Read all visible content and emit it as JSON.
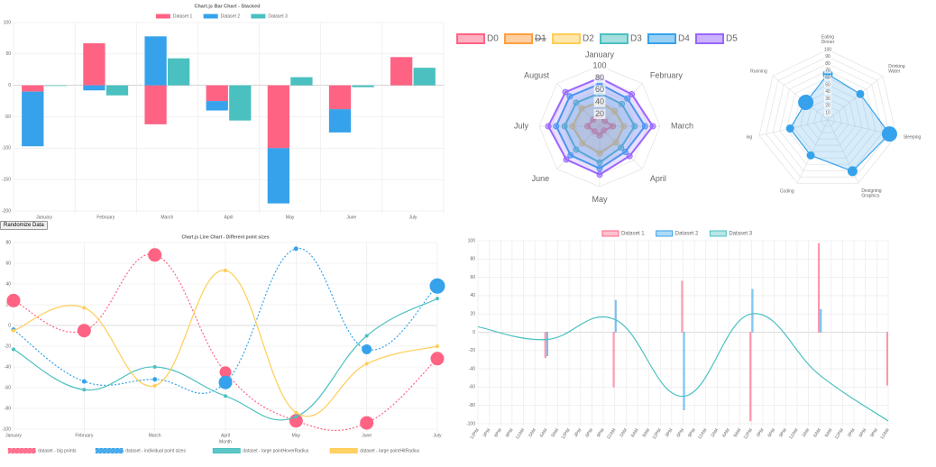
{
  "controls": {
    "button": "Randomize Data"
  },
  "chart_data": [
    {
      "type": "bar",
      "stacked": true,
      "title": "Chart.js Bar Chart - Stacked",
      "categories": [
        "January",
        "February",
        "March",
        "April",
        "May",
        "June",
        "July"
      ],
      "series": [
        {
          "name": "Dataset 1",
          "color": "#ff6384",
          "stack": 0,
          "values": [
            -10,
            67,
            -62,
            -25,
            -100,
            -38,
            45
          ]
        },
        {
          "name": "Dataset 2",
          "color": "#36a2eb",
          "stack": 0,
          "values": [
            -87,
            -8,
            78,
            -15,
            -88,
            -37,
            0
          ]
        },
        {
          "name": "Dataset 3",
          "color": "#4bc0c0",
          "stack": 1,
          "values": [
            -1,
            -16,
            43,
            -56,
            13,
            -3,
            28
          ]
        }
      ],
      "ylim": [
        -200,
        100
      ],
      "yticks": [
        -200,
        -150,
        -100,
        -50,
        0,
        50,
        100
      ],
      "grid": true,
      "legend": "top"
    },
    {
      "type": "radar",
      "categories": [
        "January",
        "February",
        "March",
        "April",
        "May",
        "June",
        "July",
        "August"
      ],
      "series": [
        {
          "name": "D0",
          "color": "#ff6384",
          "values": [
            18,
            12,
            22,
            10,
            15,
            12,
            20,
            15
          ]
        },
        {
          "name": "D1",
          "color": "#ff9f40",
          "hidden": true
        },
        {
          "name": "D2",
          "color": "#ffcd56",
          "values": [
            40,
            35,
            40,
            38,
            45,
            40,
            45,
            42
          ]
        },
        {
          "name": "D3",
          "color": "#4bc0c0",
          "values": [
            55,
            52,
            58,
            50,
            60,
            55,
            58,
            55
          ]
        },
        {
          "name": "D4",
          "color": "#36a2eb",
          "values": [
            70,
            65,
            75,
            60,
            70,
            68,
            72,
            70
          ]
        },
        {
          "name": "D5",
          "color": "#9966ff",
          "values": [
            80,
            75,
            88,
            70,
            80,
            78,
            85,
            80
          ]
        }
      ],
      "ylim": [
        0,
        100
      ],
      "yticks": [
        20,
        40,
        60,
        80,
        100
      ],
      "legend": "top"
    },
    {
      "type": "radar",
      "categories": [
        [
          "Eating",
          "Dinner"
        ],
        [
          "Drinking",
          "Water"
        ],
        "Sleeping",
        [
          "Designing",
          "Graphics"
        ],
        "Coding",
        "ing",
        "Running"
      ],
      "series": [
        {
          "color": "#36a2eb",
          "values": [
            65,
            59,
            90,
            81,
            56,
            55,
            40
          ],
          "point_sizes": [
            5,
            4,
            8,
            5,
            4,
            4,
            8
          ]
        }
      ],
      "ylim": [
        0,
        100
      ],
      "yticks": [
        10,
        20,
        30,
        40,
        50,
        60,
        70,
        80,
        90,
        100
      ]
    },
    {
      "type": "line",
      "title": "Chart.js Line Chart - Different point sizes",
      "xlabel": "Month",
      "categories": [
        "January",
        "February",
        "March",
        "April",
        "May",
        "June",
        "July"
      ],
      "series": [
        {
          "name": "dataset - big points",
          "color": "#ff6384",
          "dashed": true,
          "values": [
            24,
            -5,
            68,
            -45,
            -92,
            -94,
            -32
          ],
          "point_sizes": [
            7,
            7,
            7,
            6,
            7,
            7,
            7
          ]
        },
        {
          "name": "dataset - individual point sizes",
          "color": "#36a2eb",
          "dashed": true,
          "values": [
            -4,
            -54,
            -52,
            -55,
            74,
            -23,
            38
          ],
          "point_sizes": [
            2,
            2,
            2,
            7,
            2,
            5,
            8
          ]
        },
        {
          "name": "dataset - large pointHoverRadius",
          "color": "#4bc0c0",
          "dashed": false,
          "values": [
            -23,
            -62,
            -40,
            -68,
            -88,
            -10,
            26
          ],
          "point_sizes": [
            1.5,
            1.5,
            1.5,
            1.5,
            1.5,
            1.5,
            1.5
          ]
        },
        {
          "name": "dataset - large pointHitRadius",
          "color": "#ffcd56",
          "dashed": false,
          "values": [
            -5,
            17,
            -58,
            53,
            -84,
            -37,
            -20
          ],
          "point_sizes": [
            1.5,
            1.5,
            1.5,
            1.5,
            1.5,
            1.5,
            1.5
          ]
        }
      ],
      "ylim": [
        -100,
        80
      ],
      "yticks": [
        -100,
        -80,
        -60,
        -40,
        -20,
        0,
        20,
        40,
        60,
        80
      ],
      "grid": true,
      "legend": "bottom"
    },
    {
      "type": "line",
      "x": [
        0,
        18,
        36,
        54,
        72,
        90,
        108
      ],
      "series": [
        {
          "name": "Dataset 1",
          "type": "bar",
          "color": "#ff6384",
          "values": [
            null,
            -28,
            -60,
            56,
            -97,
            97,
            -58
          ]
        },
        {
          "name": "Dataset 2",
          "type": "bar",
          "color": "#36a2eb",
          "values": [
            null,
            -26,
            35,
            -85,
            47,
            25,
            null
          ]
        },
        {
          "name": "Dataset 3",
          "type": "line",
          "color": "#4bc0c0",
          "values": [
            6,
            -8,
            14,
            -70,
            20,
            -47,
            -97
          ]
        }
      ],
      "xlim": [
        0,
        108
      ],
      "xticks": [
        {
          "value": 0,
          "label": "12PM"
        },
        {
          "value": 3,
          "label": "3PM"
        },
        {
          "value": 6,
          "label": "6PM"
        },
        {
          "value": 9,
          "label": "9PM"
        },
        {
          "value": 12,
          "label": "12AM"
        },
        {
          "value": 15,
          "label": "3AM"
        },
        {
          "value": 18,
          "label": "6AM"
        },
        {
          "value": 21,
          "label": "9AM"
        },
        {
          "value": 24,
          "label": "12PM"
        },
        {
          "value": 27,
          "label": "3PM"
        },
        {
          "value": 30,
          "label": "6PM"
        },
        {
          "value": 33,
          "label": "9PM"
        },
        {
          "value": 36,
          "label": "12AM"
        },
        {
          "value": 39,
          "label": "3AM"
        },
        {
          "value": 42,
          "label": "6AM"
        },
        {
          "value": 45,
          "label": "9AM"
        },
        {
          "value": 48,
          "label": "12PM"
        },
        {
          "value": 51,
          "label": "3PM"
        },
        {
          "value": 54,
          "label": "6PM"
        },
        {
          "value": 57,
          "label": "9PM"
        },
        {
          "value": 60,
          "label": "12AM"
        },
        {
          "value": 63,
          "label": "3AM"
        },
        {
          "value": 66,
          "label": "6AM"
        },
        {
          "value": 69,
          "label": "9AM"
        },
        {
          "value": 72,
          "label": "12PM"
        },
        {
          "value": 75,
          "label": "3PM"
        },
        {
          "value": 78,
          "label": "6PM"
        },
        {
          "value": 81,
          "label": "9PM"
        },
        {
          "value": 84,
          "label": "12AM"
        },
        {
          "value": 87,
          "label": "3AM"
        },
        {
          "value": 90,
          "label": "6AM"
        },
        {
          "value": 93,
          "label": "9AM"
        },
        {
          "value": 96,
          "label": "12PM"
        },
        {
          "value": 99,
          "label": "3PM"
        },
        {
          "value": 102,
          "label": "6PM"
        },
        {
          "value": 105,
          "label": "9PM"
        },
        {
          "value": 108,
          "label": "12AM"
        }
      ],
      "ylim": [
        -100,
        100
      ],
      "yticks": [
        -100,
        -80,
        -60,
        -40,
        -20,
        0,
        20,
        40,
        60,
        80,
        100
      ],
      "grid": true,
      "legend": "top"
    }
  ]
}
